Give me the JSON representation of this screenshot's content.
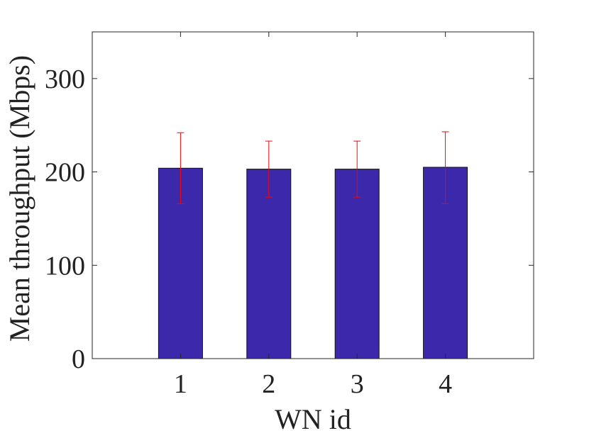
{
  "chart_data": {
    "type": "bar",
    "title": "",
    "xlabel": "WN id",
    "ylabel": "Mean throughput (Mbps)",
    "categories": [
      "1",
      "2",
      "3",
      "4"
    ],
    "values": [
      204,
      203,
      203,
      205
    ],
    "error_low": [
      166,
      173,
      173,
      166
    ],
    "error_high": [
      242,
      233,
      233,
      243
    ],
    "ylim": [
      0,
      350
    ],
    "yticks": [
      0,
      100,
      200,
      300
    ],
    "xlim": [
      0,
      5
    ],
    "grid": false,
    "bar_color": "#3c28aa",
    "error_color": "#ff0000",
    "axis_color": "#262626"
  }
}
